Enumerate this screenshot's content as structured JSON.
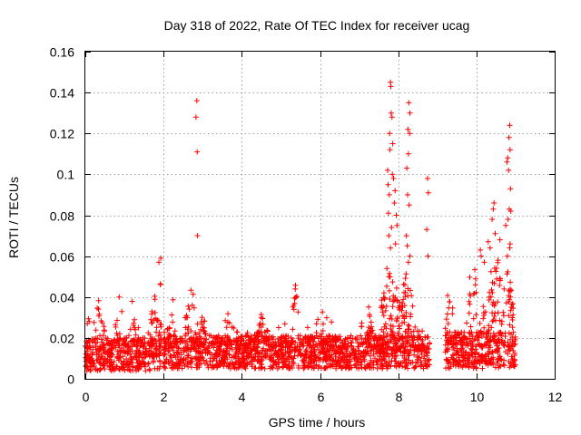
{
  "chart_data": {
    "type": "scatter",
    "title": "Day 318 of 2022, Rate Of TEC Index for receiver ucag",
    "xlabel": "GPS time / hours",
    "ylabel": "ROTI / TECUs",
    "xlim": [
      0,
      12
    ],
    "ylim": [
      0,
      0.16
    ],
    "xticks": [
      0,
      2,
      4,
      6,
      8,
      10,
      12
    ],
    "yticks": [
      0,
      0.02,
      0.04,
      0.06,
      0.08,
      0.1,
      0.12,
      0.14,
      0.16
    ],
    "xtick_labels": [
      "0",
      "2",
      "4",
      "6",
      "8",
      "10",
      "12"
    ],
    "ytick_labels": [
      "0",
      "0.02",
      "0.04",
      "0.06",
      "0.08",
      "0.1",
      "0.12",
      "0.14",
      "0.16"
    ],
    "grid": true,
    "marker": "+",
    "marker_color": "#ff0000",
    "series": [
      {
        "name": "ROTI",
        "segments": [
          {
            "x_start": 0.0,
            "x_end": 1.95,
            "base": 0.012,
            "spread": 0.009
          },
          {
            "x_start": 2.0,
            "x_end": 8.8,
            "base": 0.013,
            "spread": 0.009
          },
          {
            "x_start": 9.2,
            "x_end": 11.0,
            "base": 0.014,
            "spread": 0.01
          }
        ],
        "bursts": [
          {
            "x": 0.35,
            "width": 0.15,
            "peak": 0.04
          },
          {
            "x": 0.85,
            "width": 0.1,
            "peak": 0.043
          },
          {
            "x": 1.2,
            "width": 0.1,
            "peak": 0.038
          },
          {
            "x": 1.75,
            "width": 0.1,
            "peak": 0.045
          },
          {
            "x": 1.9,
            "width": 0.08,
            "peak": 0.058
          },
          {
            "x": 2.2,
            "width": 0.1,
            "peak": 0.036
          },
          {
            "x": 2.7,
            "width": 0.15,
            "peak": 0.05
          },
          {
            "x": 3.0,
            "width": 0.1,
            "peak": 0.035
          },
          {
            "x": 3.7,
            "width": 0.1,
            "peak": 0.038
          },
          {
            "x": 4.5,
            "width": 0.2,
            "peak": 0.032
          },
          {
            "x": 5.4,
            "width": 0.1,
            "peak": 0.055
          },
          {
            "x": 6.0,
            "width": 0.1,
            "peak": 0.042
          },
          {
            "x": 7.2,
            "width": 0.15,
            "peak": 0.043
          },
          {
            "x": 7.8,
            "width": 0.25,
            "peak": 0.06
          },
          {
            "x": 8.2,
            "width": 0.2,
            "peak": 0.055
          },
          {
            "x": 9.3,
            "width": 0.1,
            "peak": 0.054
          },
          {
            "x": 10.0,
            "width": 0.2,
            "peak": 0.062
          },
          {
            "x": 10.5,
            "width": 0.2,
            "peak": 0.065
          },
          {
            "x": 10.8,
            "width": 0.15,
            "peak": 0.06
          }
        ],
        "outliers": [
          [
            0.05,
            0.027
          ],
          [
            0.1,
            0.028
          ],
          [
            1.93,
            0.059
          ],
          [
            1.88,
            0.057
          ],
          [
            2.85,
            0.136
          ],
          [
            2.83,
            0.128
          ],
          [
            2.86,
            0.111
          ],
          [
            2.87,
            0.07
          ],
          [
            7.8,
            0.145
          ],
          [
            7.81,
            0.143
          ],
          [
            7.82,
            0.13
          ],
          [
            7.84,
            0.128
          ],
          [
            7.78,
            0.12
          ],
          [
            7.86,
            0.115
          ],
          [
            7.79,
            0.112
          ],
          [
            7.73,
            0.102
          ],
          [
            7.85,
            0.1
          ],
          [
            7.88,
            0.098
          ],
          [
            7.74,
            0.095
          ],
          [
            7.92,
            0.092
          ],
          [
            7.77,
            0.09
          ],
          [
            7.9,
            0.086
          ],
          [
            7.75,
            0.081
          ],
          [
            7.95,
            0.08
          ],
          [
            7.83,
            0.074
          ],
          [
            7.97,
            0.075
          ],
          [
            7.76,
            0.07
          ],
          [
            7.93,
            0.066
          ],
          [
            7.8,
            0.064
          ],
          [
            7.71,
            0.054
          ],
          [
            8.27,
            0.135
          ],
          [
            8.3,
            0.13
          ],
          [
            8.25,
            0.122
          ],
          [
            8.29,
            0.12
          ],
          [
            8.26,
            0.11
          ],
          [
            8.22,
            0.103
          ],
          [
            8.24,
            0.09
          ],
          [
            8.28,
            0.085
          ],
          [
            8.21,
            0.07
          ],
          [
            8.23,
            0.065
          ],
          [
            8.3,
            0.06
          ],
          [
            8.26,
            0.057
          ],
          [
            8.75,
            0.098
          ],
          [
            8.77,
            0.091
          ],
          [
            8.73,
            0.073
          ],
          [
            8.76,
            0.06
          ],
          [
            10.85,
            0.124
          ],
          [
            10.83,
            0.118
          ],
          [
            10.86,
            0.112
          ],
          [
            10.8,
            0.108
          ],
          [
            10.78,
            0.106
          ],
          [
            10.82,
            0.102
          ],
          [
            10.87,
            0.093
          ],
          [
            10.84,
            0.083
          ],
          [
            10.88,
            0.082
          ],
          [
            10.81,
            0.078
          ],
          [
            10.75,
            0.075
          ],
          [
            10.86,
            0.066
          ],
          [
            10.85,
            0.064
          ],
          [
            10.79,
            0.06
          ],
          [
            10.45,
            0.086
          ],
          [
            10.43,
            0.083
          ],
          [
            10.4,
            0.078
          ],
          [
            10.48,
            0.071
          ],
          [
            10.3,
            0.067
          ],
          [
            10.35,
            0.064
          ],
          [
            10.1,
            0.063
          ],
          [
            10.12,
            0.06
          ],
          [
            10.55,
            0.058
          ],
          [
            10.2,
            0.057
          ],
          [
            10.6,
            0.068
          ]
        ]
      }
    ]
  }
}
